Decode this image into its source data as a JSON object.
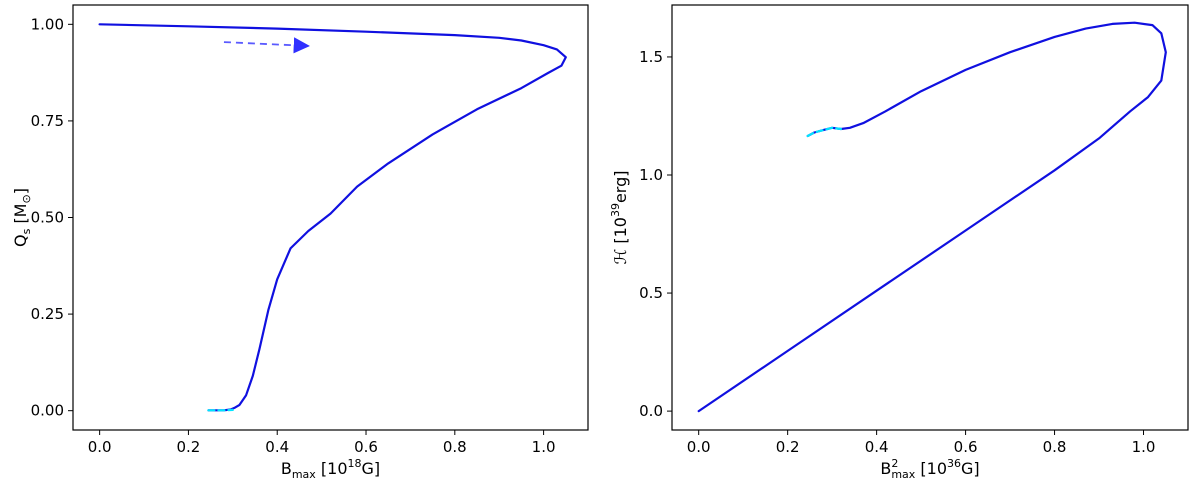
{
  "chart_data": [
    {
      "type": "line",
      "panel": "left",
      "xlabel": {
        "main": "B",
        "sub": "max",
        "unit_open": " [10",
        "unit_exp": "18",
        "unit_close": "G]"
      },
      "ylabel": {
        "main": "Q",
        "sub": "s",
        "unit_open": " [M",
        "unit_sub": "⊙",
        "unit_close": "]"
      },
      "xlim": [
        -0.06,
        1.1
      ],
      "ylim": [
        -0.05,
        1.05
      ],
      "xticks": [
        0.0,
        0.2,
        0.4,
        0.6,
        0.8,
        1.0
      ],
      "xtick_labels": [
        "0.0",
        "0.2",
        "0.4",
        "0.6",
        "0.8",
        "1.0"
      ],
      "yticks": [
        0.0,
        0.25,
        0.5,
        0.75,
        1.0
      ],
      "ytick_labels": [
        "0.00",
        "0.25",
        "0.50",
        "0.75",
        "1.00"
      ],
      "grid": false,
      "series": [
        {
          "color": "#1010e0",
          "style": "solid",
          "x": [
            0.0,
            0.2,
            0.4,
            0.6,
            0.8,
            0.9,
            0.95,
            1.0,
            1.03,
            1.05,
            1.04,
            1.01,
            0.95,
            0.85,
            0.75,
            0.65,
            0.58,
            0.52,
            0.47,
            0.43,
            0.4,
            0.38,
            0.36,
            0.345,
            0.33,
            0.315,
            0.305,
            0.295,
            0.28,
            0.26,
            0.245
          ],
          "y": [
            1.0,
            0.995,
            0.989,
            0.981,
            0.972,
            0.965,
            0.958,
            0.946,
            0.935,
            0.915,
            0.893,
            0.874,
            0.835,
            0.78,
            0.715,
            0.64,
            0.58,
            0.51,
            0.465,
            0.42,
            0.34,
            0.26,
            0.16,
            0.09,
            0.04,
            0.015,
            0.008,
            0.003,
            0.001,
            0.001,
            0.001
          ]
        },
        {
          "color": "#00e5ff",
          "style": "dashed",
          "x": [
            0.245,
            0.26,
            0.28,
            0.3
          ],
          "y": [
            0.001,
            0.001,
            0.001,
            0.002
          ]
        }
      ],
      "annotations": [
        {
          "type": "arrow",
          "color": "#5a5aff",
          "style": "dashed",
          "from": [
            0.28,
            0.954
          ],
          "to": [
            0.47,
            0.944
          ]
        }
      ]
    },
    {
      "type": "line",
      "panel": "right",
      "xlabel": {
        "main": "B",
        "sup": "2",
        "sub": "max",
        "unit_open": " [10",
        "unit_exp": "36",
        "unit_close": "G]"
      },
      "ylabel": {
        "main": "ℋ",
        "unit_open": " [10",
        "unit_exp": "39",
        "unit_close": "erg]"
      },
      "xlim": [
        -0.06,
        1.1
      ],
      "ylim": [
        -0.08,
        1.72
      ],
      "xticks": [
        0.0,
        0.2,
        0.4,
        0.6,
        0.8,
        1.0
      ],
      "xtick_labels": [
        "0.0",
        "0.2",
        "0.4",
        "0.6",
        "0.8",
        "1.0"
      ],
      "yticks": [
        0.0,
        0.5,
        1.0,
        1.5
      ],
      "ytick_labels": [
        "0.0",
        "0.5",
        "1.0",
        "1.5"
      ],
      "grid": false,
      "series": [
        {
          "color": "#1010e0",
          "style": "solid",
          "x": [
            0.0,
            0.2,
            0.4,
            0.6,
            0.8,
            0.9,
            0.97,
            1.01,
            1.04,
            1.05,
            1.04,
            1.02,
            0.98,
            0.93,
            0.87,
            0.8,
            0.7,
            0.6,
            0.5,
            0.42,
            0.37,
            0.34,
            0.32,
            0.3,
            0.28,
            0.26,
            0.245
          ],
          "y": [
            0.0,
            0.255,
            0.51,
            0.765,
            1.02,
            1.155,
            1.27,
            1.33,
            1.4,
            1.52,
            1.6,
            1.635,
            1.645,
            1.64,
            1.62,
            1.585,
            1.52,
            1.445,
            1.355,
            1.27,
            1.22,
            1.2,
            1.195,
            1.2,
            1.19,
            1.18,
            1.165
          ]
        },
        {
          "color": "#00e5ff",
          "style": "dashed",
          "x": [
            0.245,
            0.26,
            0.28,
            0.3,
            0.32
          ],
          "y": [
            1.165,
            1.18,
            1.19,
            1.2,
            1.195
          ]
        }
      ]
    }
  ]
}
